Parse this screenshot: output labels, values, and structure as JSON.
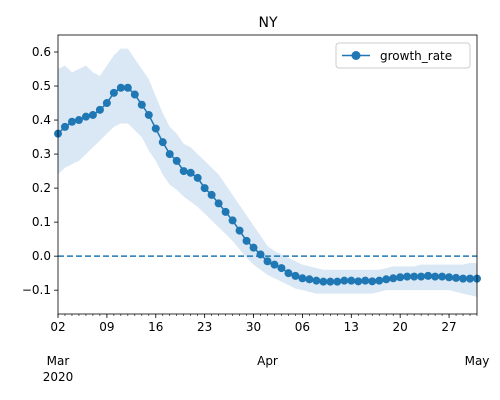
{
  "chart_data": {
    "type": "line",
    "title": "NY",
    "xlabel": "",
    "ylabel": "",
    "ylim": [
      -0.17,
      0.65
    ],
    "xlim": [
      "2020-03-02",
      "2020-05-01"
    ],
    "grid": false,
    "legend": {
      "position": "top-right",
      "entries": [
        "growth_rate"
      ]
    },
    "reference_line": {
      "y": 0.0,
      "style": "dashed",
      "color": "#1f77b4"
    },
    "colors": {
      "series": "#1f77b4",
      "band": "#dae7f4"
    },
    "ytick_labels": [
      "−0.1",
      "0.0",
      "0.1",
      "0.2",
      "0.3",
      "0.4",
      "0.5",
      "0.6"
    ],
    "ytick_values": [
      -0.1,
      0.0,
      0.1,
      0.2,
      0.3,
      0.4,
      0.5,
      0.6
    ],
    "xtick_labels_minor": [
      {
        "date": "2020-03-02",
        "label": "02"
      },
      {
        "date": "2020-03-09",
        "label": "09"
      },
      {
        "date": "2020-03-16",
        "label": "16"
      },
      {
        "date": "2020-03-23",
        "label": "23"
      },
      {
        "date": "2020-03-30",
        "label": "30"
      },
      {
        "date": "2020-04-06",
        "label": "06"
      },
      {
        "date": "2020-04-13",
        "label": "13"
      },
      {
        "date": "2020-04-20",
        "label": "20"
      },
      {
        "date": "2020-04-27",
        "label": "27"
      }
    ],
    "xtick_labels_major": [
      {
        "date": "2020-03-01",
        "label": "Mar",
        "sublabel": "2020"
      },
      {
        "date": "2020-04-01",
        "label": "Apr",
        "sublabel": ""
      },
      {
        "date": "2020-05-01",
        "label": "May",
        "sublabel": ""
      }
    ],
    "series": [
      {
        "name": "growth_rate",
        "start_date": "2020-03-01",
        "values": [
          0.36,
          0.36,
          0.38,
          0.395,
          0.4,
          0.41,
          0.415,
          0.43,
          0.45,
          0.48,
          0.495,
          0.495,
          0.475,
          0.445,
          0.415,
          0.375,
          0.335,
          0.3,
          0.28,
          0.25,
          0.245,
          0.23,
          0.2,
          0.18,
          0.155,
          0.13,
          0.105,
          0.075,
          0.045,
          0.025,
          0.005,
          -0.015,
          -0.025,
          -0.035,
          -0.05,
          -0.058,
          -0.065,
          -0.068,
          -0.072,
          -0.075,
          -0.075,
          -0.075,
          -0.072,
          -0.072,
          -0.074,
          -0.072,
          -0.074,
          -0.072,
          -0.068,
          -0.065,
          -0.062,
          -0.06,
          -0.06,
          -0.06,
          -0.058,
          -0.06,
          -0.06,
          -0.062,
          -0.064,
          -0.066,
          -0.066,
          -0.066
        ],
        "lower": [
          0.22,
          0.24,
          0.26,
          0.27,
          0.28,
          0.3,
          0.32,
          0.34,
          0.36,
          0.38,
          0.39,
          0.39,
          0.37,
          0.35,
          0.31,
          0.28,
          0.24,
          0.21,
          0.195,
          0.175,
          0.16,
          0.145,
          0.125,
          0.105,
          0.085,
          0.065,
          0.045,
          0.02,
          -0.005,
          -0.025,
          -0.04,
          -0.055,
          -0.065,
          -0.075,
          -0.085,
          -0.095,
          -0.1,
          -0.105,
          -0.11,
          -0.11,
          -0.11,
          -0.11,
          -0.11,
          -0.11,
          -0.11,
          -0.11,
          -0.11,
          -0.105,
          -0.1,
          -0.1,
          -0.1,
          -0.1,
          -0.1,
          -0.1,
          -0.1,
          -0.1,
          -0.1,
          -0.1,
          -0.105,
          -0.11,
          -0.115,
          -0.12
        ],
        "upper": [
          0.54,
          0.55,
          0.56,
          0.54,
          0.55,
          0.56,
          0.54,
          0.53,
          0.56,
          0.59,
          0.61,
          0.61,
          0.58,
          0.55,
          0.52,
          0.47,
          0.42,
          0.38,
          0.36,
          0.33,
          0.32,
          0.3,
          0.28,
          0.26,
          0.24,
          0.21,
          0.18,
          0.15,
          0.12,
          0.09,
          0.06,
          0.03,
          0.015,
          0.005,
          -0.005,
          -0.015,
          -0.025,
          -0.03,
          -0.035,
          -0.04,
          -0.04,
          -0.04,
          -0.04,
          -0.04,
          -0.04,
          -0.04,
          -0.04,
          -0.04,
          -0.035,
          -0.03,
          -0.03,
          -0.03,
          -0.03,
          -0.025,
          -0.025,
          -0.025,
          -0.025,
          -0.025,
          -0.025,
          -0.025,
          -0.02,
          -0.02
        ]
      }
    ]
  }
}
